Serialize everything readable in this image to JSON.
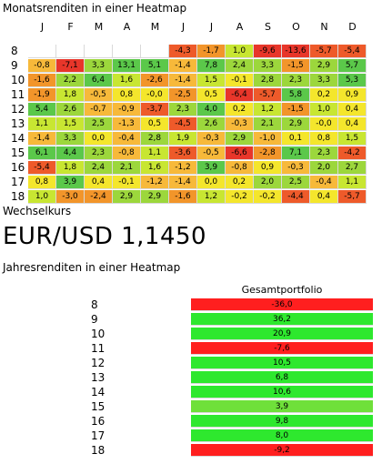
{
  "monthly_title": "Monatsrenditen in einer Heatmap",
  "fx_label": "Wechselkurs",
  "fx_value": "EUR/USD 1,1450",
  "annual_title": "Jahresrenditen in einer Heatmap",
  "months": [
    "J",
    "F",
    "M",
    "A",
    "M",
    "J",
    "J",
    "A",
    "S",
    "O",
    "N",
    "D"
  ],
  "years": [
    "8",
    "9",
    "10",
    "11",
    "12",
    "13",
    "14",
    "15",
    "16",
    "17",
    "18"
  ],
  "monthly": [
    [
      "",
      "",
      "",
      "",
      "",
      "-4,3",
      "-1,7",
      "1,0",
      "-9,6",
      "-13,6",
      "-5,7",
      "-5,4"
    ],
    [
      "-0,8",
      "-7,1",
      "3,3",
      "13,1",
      "5,1",
      "-1,4",
      "7,8",
      "2,4",
      "3,3",
      "-1,5",
      "2,9",
      "5,7"
    ],
    [
      "-1,6",
      "2,2",
      "6,4",
      "1,6",
      "-2,6",
      "-1,4",
      "1,5",
      "-0,1",
      "2,8",
      "2,3",
      "3,3",
      "5,3"
    ],
    [
      "-1,9",
      "1,8",
      "-0,5",
      "0,8",
      "-0,0",
      "-2,5",
      "0,5",
      "-6,4",
      "-5,7",
      "5,8",
      "0,2",
      "0,9"
    ],
    [
      "5,4",
      "2,6",
      "-0,7",
      "-0,9",
      "-3,7",
      "2,3",
      "4,0",
      "0,2",
      "1,2",
      "-1,5",
      "1,0",
      "0,4"
    ],
    [
      "1,1",
      "1,5",
      "2,5",
      "-1,3",
      "0,5",
      "-4,5",
      "2,6",
      "-0,3",
      "2,1",
      "2,9",
      "-0,0",
      "0,4"
    ],
    [
      "-1,4",
      "3,3",
      "0,0",
      "-0,4",
      "2,8",
      "1,9",
      "-0,3",
      "2,9",
      "-1,0",
      "0,1",
      "0,8",
      "1,5"
    ],
    [
      "6,1",
      "4,4",
      "2,3",
      "-0,8",
      "1,1",
      "-3,6",
      "-0,5",
      "-6,6",
      "-2,8",
      "7,1",
      "2,3",
      "-4,2"
    ],
    [
      "-5,4",
      "1,8",
      "2,4",
      "2,1",
      "1,6",
      "-1,2",
      "3,9",
      "-0,8",
      "0,9",
      "-0,3",
      "2,0",
      "2,7"
    ],
    [
      "0,8",
      "3,9",
      "0,4",
      "-0,1",
      "-1,2",
      "-1,4",
      "0,0",
      "0,2",
      "2,0",
      "2,5",
      "-0,4",
      "1,1"
    ],
    [
      "1,0",
      "-3,0",
      "-2,4",
      "2,9",
      "2,9",
      "-1,6",
      "1,2",
      "-0,2",
      "-0,2",
      "-4,4",
      "0,4",
      "-5,7"
    ]
  ],
  "annual": {
    "header": "Gesamtportfolio",
    "values": [
      "-36,0",
      "36,2",
      "20,9",
      "-7,6",
      "10,5",
      "6,8",
      "10,6",
      "3,9",
      "9,8",
      "8,0",
      "-9,2"
    ]
  },
  "colors": {
    "deep_red": "#e8362a",
    "red": "#ee5a2a",
    "orange": "#f2952a",
    "light_orange": "#f7b93a",
    "yellow": "#f4e62c",
    "lime": "#c8e632",
    "light_green": "#9cd73c",
    "green": "#5bc84a",
    "annual_red": "#ff1f1f",
    "annual_green": "#2ee82e",
    "annual_mid": "#6fe03a"
  }
}
